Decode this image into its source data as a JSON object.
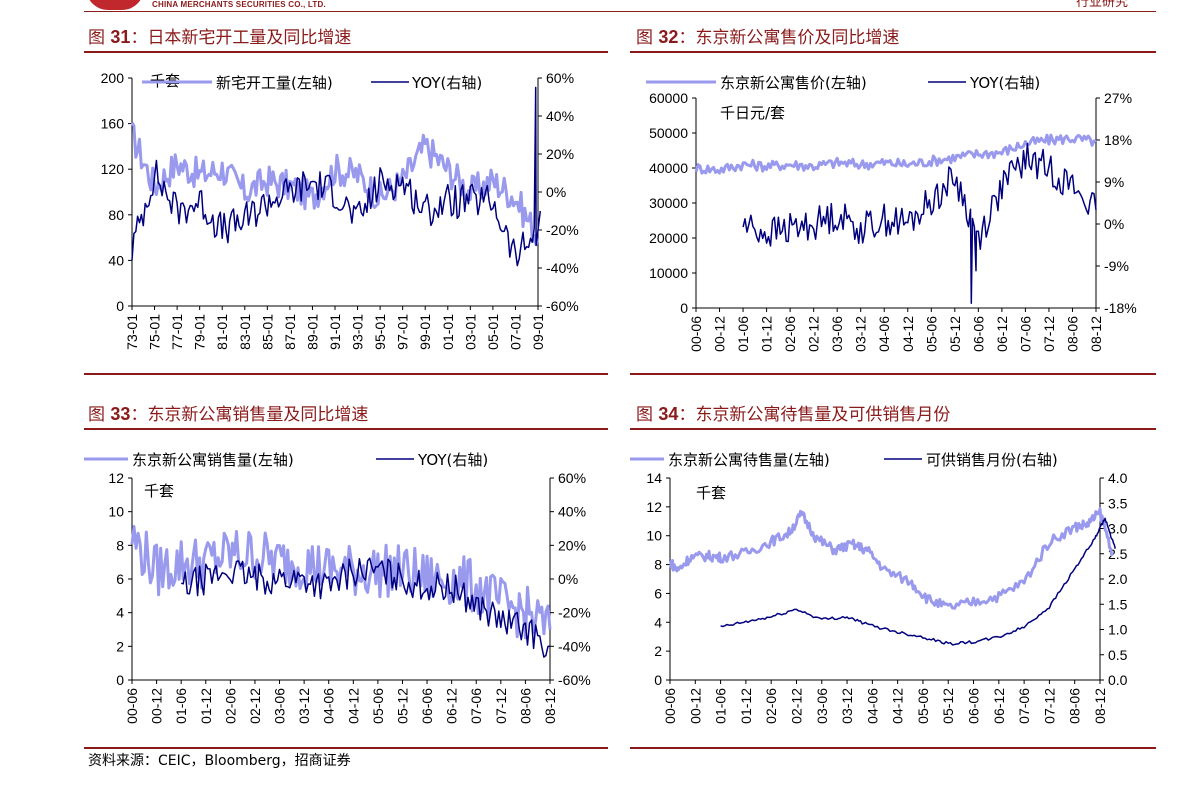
{
  "header": {
    "company_en": "CHINA MERCHANTS SECURITIES CO., LTD.",
    "section": "行业研究"
  },
  "figures": [
    {
      "prefix": "图",
      "num": "31",
      "sep": "：",
      "title": "日本新宅开工量及同比增速"
    },
    {
      "prefix": "图",
      "num": "32",
      "sep": "：",
      "title": "东京新公寓售价及同比增速"
    },
    {
      "prefix": "图",
      "num": "33",
      "sep": "：",
      "title": "东京新公寓销售量及同比增速"
    },
    {
      "prefix": "图",
      "num": "34",
      "sep": "：",
      "title": "东京新公寓待售量及可供销售月份"
    }
  ],
  "source_note": "资料来源：CEIC，Bloomberg，招商证券",
  "colors": {
    "left_series": "#9999ee",
    "right_series": "#00007f",
    "brand": "#8b1a1a"
  },
  "chart_data": [
    {
      "type": "line",
      "unit_label": "千套",
      "x": [
        "73-01",
        "75-01",
        "77-01",
        "79-01",
        "81-01",
        "83-01",
        "85-01",
        "87-01",
        "89-01",
        "91-01",
        "93-01",
        "95-01",
        "97-01",
        "99-01",
        "01-01",
        "03-01",
        "05-01",
        "07-01",
        "09-01"
      ],
      "ylim": [
        0,
        200
      ],
      "yticks": [
        "0",
        "40",
        "80",
        "120",
        "160",
        "200"
      ],
      "y2lim": [
        -60,
        60
      ],
      "y2ticks": [
        "-60%",
        "-40%",
        "-20%",
        "0%",
        "20%",
        "40%",
        "60%"
      ],
      "series": [
        {
          "name": "新宅开工量(左轴)",
          "axis": "left",
          "values": [
            150,
            105,
            125,
            115,
            120,
            100,
            110,
            105,
            95,
            120,
            115,
            95,
            110,
            140,
            120,
            100,
            110,
            95,
            60
          ],
          "noise": 14
        },
        {
          "name": "YOY(右轴)",
          "axis": "right",
          "values": [
            -30,
            10,
            -10,
            -5,
            -20,
            -15,
            -5,
            0,
            5,
            0,
            -15,
            5,
            5,
            -10,
            -5,
            -5,
            -5,
            -35,
            -20
          ],
          "noise": 9,
          "spikes": [
            [
              17.9,
              55
            ],
            [
              18.1,
              -10
            ]
          ]
        }
      ]
    },
    {
      "type": "line",
      "unit_label": "千日元/套",
      "x": [
        "00-06",
        "00-12",
        "01-06",
        "01-12",
        "02-06",
        "02-12",
        "03-06",
        "03-12",
        "04-06",
        "04-12",
        "05-06",
        "05-12",
        "06-06",
        "06-12",
        "07-06",
        "07-12",
        "08-06",
        "08-12"
      ],
      "ylim": [
        0,
        60000
      ],
      "yticks": [
        "0",
        "10000",
        "20000",
        "30000",
        "40000",
        "50000",
        "60000"
      ],
      "y2lim": [
        -18,
        27
      ],
      "y2ticks": [
        "-18%",
        "-9%",
        "0%",
        "9%",
        "18%",
        "27%"
      ],
      "series": [
        {
          "name": "东京新公寓售价(左轴)",
          "axis": "left",
          "values": [
            40000,
            39500,
            41000,
            40500,
            41000,
            40500,
            41500,
            41000,
            41500,
            41000,
            42000,
            43000,
            44000,
            44500,
            47000,
            48000,
            48500,
            47500
          ],
          "noise": 1500
        },
        {
          "name": "YOY(右轴)",
          "axis": "right",
          "start": 1.9,
          "values": [
            null,
            null,
            0,
            -2,
            -1,
            0,
            2,
            -1,
            1,
            0,
            5,
            10,
            -3,
            8,
            14,
            12,
            8,
            3
          ],
          "noise": 3.5,
          "spikes": [
            [
              11.7,
              -17
            ],
            [
              11.9,
              -10
            ]
          ]
        }
      ]
    },
    {
      "type": "line",
      "unit_label": "千套",
      "x": [
        "00-06",
        "00-12",
        "01-06",
        "01-12",
        "02-06",
        "02-12",
        "03-06",
        "03-12",
        "04-06",
        "04-12",
        "05-06",
        "05-12",
        "06-06",
        "06-12",
        "07-06",
        "07-12",
        "08-06",
        "08-12"
      ],
      "ylim": [
        0,
        12
      ],
      "yticks": [
        "0",
        "2",
        "4",
        "6",
        "8",
        "10",
        "12"
      ],
      "y2lim": [
        -60,
        60
      ],
      "y2ticks": [
        "-60%",
        "-40%",
        "-20%",
        "0%",
        "20%",
        "40%",
        "60%"
      ],
      "series": [
        {
          "name": "东京新公寓销售量(左轴)",
          "axis": "left",
          "values": [
            8.5,
            6.5,
            7,
            7,
            7.5,
            7.5,
            7,
            7,
            6.5,
            6.5,
            6.5,
            6.5,
            6,
            6,
            5.5,
            4.5,
            4,
            3
          ],
          "noise": 1.6
        },
        {
          "name": "YOY(右轴)",
          "axis": "right",
          "start": 1.9,
          "values": [
            null,
            null,
            -5,
            0,
            5,
            0,
            0,
            0,
            -5,
            5,
            5,
            0,
            -5,
            -5,
            -15,
            -25,
            -30,
            -40
          ],
          "noise": 9
        }
      ]
    },
    {
      "type": "line",
      "unit_label": "千套",
      "x": [
        "00-06",
        "00-12",
        "01-06",
        "01-12",
        "02-06",
        "02-12",
        "03-06",
        "03-12",
        "04-06",
        "04-12",
        "05-06",
        "05-12",
        "06-06",
        "06-12",
        "07-06",
        "07-12",
        "08-06",
        "08-12"
      ],
      "ylim": [
        0,
        14
      ],
      "yticks": [
        "0",
        "2",
        "4",
        "6",
        "8",
        "10",
        "12",
        "14"
      ],
      "y2lim": [
        0,
        4
      ],
      "y2ticks": [
        "0.0",
        "0.5",
        "1.0",
        "1.5",
        "2.0",
        "2.5",
        "3.0",
        "3.5",
        "4.0"
      ],
      "series": [
        {
          "name": "东京新公寓待售量(左轴)",
          "axis": "left",
          "points": [
            [
              0,
              8.2
            ],
            [
              0.3,
              7.6
            ],
            [
              0.8,
              8.5
            ],
            [
              1.5,
              8.6
            ],
            [
              2,
              8.5
            ],
            [
              3,
              8.8
            ],
            [
              4,
              9.6
            ],
            [
              4.7,
              10.2
            ],
            [
              5.2,
              11.5
            ],
            [
              5.8,
              9.8
            ],
            [
              6.5,
              9.0
            ],
            [
              7.2,
              9.4
            ],
            [
              7.8,
              9.0
            ],
            [
              8.5,
              7.6
            ],
            [
              9.5,
              6.8
            ],
            [
              10.2,
              5.6
            ],
            [
              11,
              5.0
            ],
            [
              12,
              5.4
            ],
            [
              13,
              5.8
            ],
            [
              14,
              6.8
            ],
            [
              15,
              9.6
            ],
            [
              16,
              10.6
            ],
            [
              16.5,
              10.8
            ],
            [
              17,
              11.6
            ],
            [
              17.5,
              8.8
            ]
          ],
          "noise": 0.35
        },
        {
          "name": "可供销售月份(右轴)",
          "axis": "right",
          "start": 2.0,
          "points": [
            [
              2,
              1.05
            ],
            [
              3,
              1.15
            ],
            [
              4,
              1.25
            ],
            [
              5,
              1.4
            ],
            [
              6,
              1.2
            ],
            [
              7,
              1.25
            ],
            [
              7.8,
              1.1
            ],
            [
              9,
              0.95
            ],
            [
              10,
              0.85
            ],
            [
              11,
              0.72
            ],
            [
              12,
              0.75
            ],
            [
              13,
              0.85
            ],
            [
              14,
              1.05
            ],
            [
              15,
              1.45
            ],
            [
              16,
              2.2
            ],
            [
              16.8,
              2.8
            ],
            [
              17.2,
              3.2
            ],
            [
              17.6,
              2.6
            ]
          ],
          "noise": 0.03
        }
      ]
    }
  ]
}
